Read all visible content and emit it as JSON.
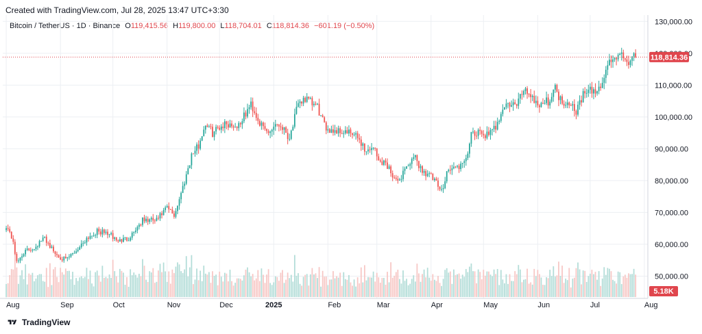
{
  "header": {
    "created_text": "Created with TradingView.com, Jul 28, 2025 13:47 UTC+3:30"
  },
  "symbol": {
    "name": "Bitcoin / TetherUS · 1D · Binance",
    "o_label": "O",
    "o_value": "119,415.56",
    "h_label": "H",
    "h_value": "119,800.00",
    "l_label": "L",
    "l_value": "118,704.01",
    "c_label": "C",
    "c_value": "118,814.36",
    "change": "−601.19 (−0.50%)"
  },
  "footer": {
    "brand": "TradingView",
    "logo_icon": "tradingview-logo-icon"
  },
  "colors": {
    "up": "#26a69a",
    "down": "#ef5350",
    "grid": "#eceff3",
    "last_price": "#e0464d",
    "volume_up": "#b3ddd8",
    "volume_down": "#f7c7c5"
  },
  "chart_data": {
    "type": "candlestick",
    "series_name": "Bitcoin / TetherUS · 1D · Binance",
    "y_ticks": [
      "130,000.00",
      "120,000.00",
      "110,000.00",
      "100,000.00",
      "90,000.00",
      "80,000.00",
      "70,000.00",
      "60,000.00",
      "50,000.00"
    ],
    "y_tick_values": [
      130000,
      120000,
      110000,
      100000,
      90000,
      80000,
      70000,
      60000,
      50000
    ],
    "x_ticks": [
      {
        "label": "Aug",
        "day": 0,
        "bold": false
      },
      {
        "label": "Sep",
        "day": 31,
        "bold": false
      },
      {
        "label": "Oct",
        "day": 61,
        "bold": false
      },
      {
        "label": "Nov",
        "day": 92,
        "bold": false
      },
      {
        "label": "Dec",
        "day": 122,
        "bold": false
      },
      {
        "label": "2025",
        "day": 153,
        "bold": true
      },
      {
        "label": "Feb",
        "day": 184,
        "bold": false
      },
      {
        "label": "Mar",
        "day": 212,
        "bold": false
      },
      {
        "label": "Apr",
        "day": 243,
        "bold": false
      },
      {
        "label": "May",
        "day": 273,
        "bold": false
      },
      {
        "label": "Jun",
        "day": 304,
        "bold": false
      },
      {
        "label": "Jul",
        "day": 334,
        "bold": false
      },
      {
        "label": "Aug",
        "day": 365,
        "bold": false
      }
    ],
    "x_range_days": [
      -2,
      367
    ],
    "y_range": [
      43000,
      132000
    ],
    "last_price": 118814.36,
    "last_price_label": "118,814.36",
    "volume_label": "5.18K",
    "close_anchors": [
      [
        0,
        66000
      ],
      [
        4,
        61000
      ],
      [
        6,
        54000
      ],
      [
        10,
        57500
      ],
      [
        16,
        59000
      ],
      [
        22,
        62000
      ],
      [
        28,
        57000
      ],
      [
        34,
        55000
      ],
      [
        40,
        58000
      ],
      [
        46,
        62000
      ],
      [
        52,
        64000
      ],
      [
        58,
        63500
      ],
      [
        64,
        61000
      ],
      [
        70,
        62000
      ],
      [
        78,
        67500
      ],
      [
        86,
        67500
      ],
      [
        92,
        71500
      ],
      [
        96,
        69000
      ],
      [
        100,
        76000
      ],
      [
        106,
        88000
      ],
      [
        110,
        91000
      ],
      [
        114,
        98000
      ],
      [
        118,
        95000
      ],
      [
        122,
        97000
      ],
      [
        126,
        98000
      ],
      [
        132,
        97000
      ],
      [
        136,
        100000
      ],
      [
        140,
        104000
      ],
      [
        146,
        97000
      ],
      [
        150,
        95000
      ],
      [
        154,
        98000
      ],
      [
        158,
        97000
      ],
      [
        162,
        93500
      ],
      [
        166,
        102000
      ],
      [
        170,
        106000
      ],
      [
        174,
        104500
      ],
      [
        178,
        103000
      ],
      [
        182,
        97000
      ],
      [
        186,
        96000
      ],
      [
        192,
        95500
      ],
      [
        198,
        94500
      ],
      [
        202,
        93000
      ],
      [
        206,
        89000
      ],
      [
        210,
        91000
      ],
      [
        213,
        86000
      ],
      [
        216,
        86000
      ],
      [
        220,
        83000
      ],
      [
        224,
        79000
      ],
      [
        228,
        84000
      ],
      [
        234,
        87000
      ],
      [
        238,
        83000
      ],
      [
        242,
        82000
      ],
      [
        246,
        79000
      ],
      [
        249,
        76500
      ],
      [
        252,
        83000
      ],
      [
        256,
        84000
      ],
      [
        262,
        85000
      ],
      [
        266,
        94000
      ],
      [
        272,
        95000
      ],
      [
        276,
        94000
      ],
      [
        280,
        97000
      ],
      [
        284,
        103000
      ],
      [
        288,
        104000
      ],
      [
        292,
        103500
      ],
      [
        296,
        109000
      ],
      [
        300,
        107000
      ],
      [
        304,
        104000
      ],
      [
        310,
        105000
      ],
      [
        314,
        109000
      ],
      [
        318,
        104500
      ],
      [
        322,
        105000
      ],
      [
        326,
        102000
      ],
      [
        330,
        107000
      ],
      [
        334,
        108000
      ],
      [
        338,
        108000
      ],
      [
        342,
        112000
      ],
      [
        344,
        117000
      ],
      [
        348,
        118500
      ],
      [
        352,
        119000
      ],
      [
        356,
        117500
      ],
      [
        360,
        118814
      ]
    ],
    "volume_range": [
      0,
      1.0
    ]
  }
}
